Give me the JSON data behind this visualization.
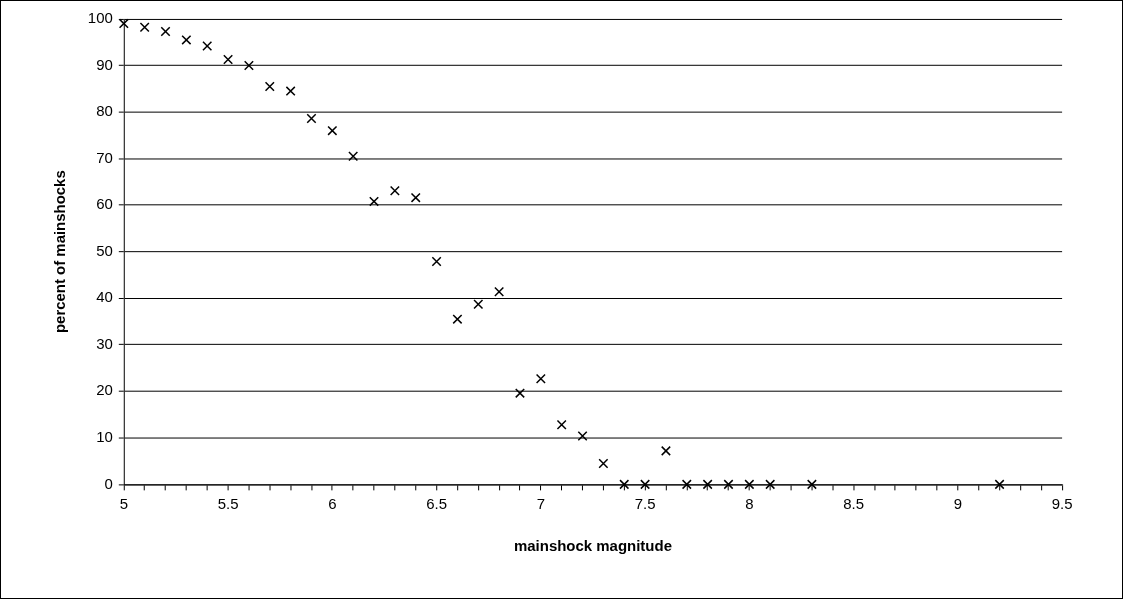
{
  "chart_data": {
    "type": "scatter",
    "xlabel": "mainshock magnitude",
    "ylabel": "percent of mainshocks",
    "x": [
      5,
      5.1,
      5.2,
      5.3,
      5.4,
      5.5,
      5.6,
      5.7,
      5.8,
      5.9,
      6,
      6.1,
      6.2,
      6.3,
      6.4,
      6.5,
      6.6,
      6.7,
      6.8,
      6.9,
      7,
      7.1,
      7.2,
      7.3,
      7.4,
      7.5,
      7.6,
      7.7,
      7.8,
      7.9,
      8,
      8.1,
      8.3,
      9.2
    ],
    "series": [
      {
        "color": "#000000",
        "values": [
          99,
          98.2,
          97.3,
          95.5,
          94.2,
          91.3,
          90,
          85.5,
          84.5,
          78.6,
          76,
          70.5,
          60.8,
          63.1,
          61.6,
          47.9,
          35.5,
          38.7,
          41.4,
          19.6,
          22.7,
          12.8,
          10.4,
          4.5,
          0,
          0,
          7.2,
          0,
          0,
          0,
          0,
          0,
          0,
          0
        ]
      }
    ],
    "marker": "cross",
    "grid": "y",
    "legend": false,
    "xlim": [
      5,
      9.5
    ],
    "xticks": [
      5,
      {
        "value": 5.1,
        "label": null
      },
      {
        "value": 5.2,
        "label": null
      },
      {
        "value": 5.3,
        "label": null
      },
      {
        "value": 5.4,
        "label": null
      },
      5.5,
      {
        "value": 5.6,
        "label": null
      },
      {
        "value": 5.7,
        "label": null
      },
      {
        "value": 5.8,
        "label": null
      },
      {
        "value": 5.9,
        "label": null
      },
      6,
      {
        "value": 6.1,
        "label": null
      },
      {
        "value": 6.2,
        "label": null
      },
      {
        "value": 6.3,
        "label": null
      },
      {
        "value": 6.4,
        "label": null
      },
      6.5,
      {
        "value": 6.6,
        "label": null
      },
      {
        "value": 6.7,
        "label": null
      },
      {
        "value": 6.8,
        "label": null
      },
      {
        "value": 6.9,
        "label": null
      },
      7,
      {
        "value": 7.1,
        "label": null
      },
      {
        "value": 7.2,
        "label": null
      },
      {
        "value": 7.3,
        "label": null
      },
      {
        "value": 7.4,
        "label": null
      },
      7.5,
      {
        "value": 7.6,
        "label": null
      },
      {
        "value": 7.7,
        "label": null
      },
      {
        "value": 7.8,
        "label": null
      },
      {
        "value": 7.9,
        "label": null
      },
      8,
      {
        "value": 8.1,
        "label": null
      },
      {
        "value": 8.2,
        "label": null
      },
      {
        "value": 8.3,
        "label": null
      },
      {
        "value": 8.4,
        "label": null
      },
      8.5,
      {
        "value": 8.6,
        "label": null
      },
      {
        "value": 8.7,
        "label": null
      },
      {
        "value": 8.8,
        "label": null
      },
      {
        "value": 8.9,
        "label": null
      },
      9,
      {
        "value": 9.1,
        "label": null
      },
      {
        "value": 9.2,
        "label": null
      },
      {
        "value": 9.3,
        "label": null
      },
      {
        "value": 9.4,
        "label": null
      },
      9.5
    ],
    "ylim": [
      0,
      100
    ],
    "yticks": [
      0,
      10,
      20,
      30,
      40,
      50,
      60,
      70,
      80,
      90,
      100
    ]
  }
}
